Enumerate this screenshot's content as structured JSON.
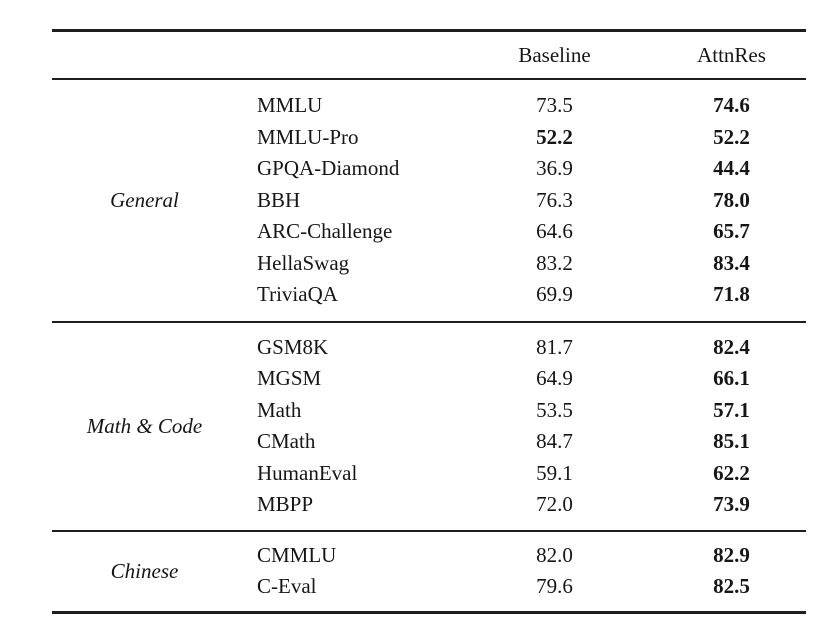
{
  "table": {
    "header": {
      "baseline": "Baseline",
      "attnres": "AttnRes"
    },
    "style": {
      "rule_color": "#1e1e1e",
      "text_color": "#161616",
      "background": "#ffffff"
    },
    "sections": [
      {
        "group": "General",
        "rows": [
          {
            "name": "MMLU",
            "baseline": "73.5",
            "attnres": "74.6",
            "baseline_bold": false,
            "attnres_bold": true
          },
          {
            "name": "MMLU-Pro",
            "baseline": "52.2",
            "attnres": "52.2",
            "baseline_bold": true,
            "attnres_bold": true
          },
          {
            "name": "GPQA-Diamond",
            "baseline": "36.9",
            "attnres": "44.4",
            "baseline_bold": false,
            "attnres_bold": true
          },
          {
            "name": "BBH",
            "baseline": "76.3",
            "attnres": "78.0",
            "baseline_bold": false,
            "attnres_bold": true
          },
          {
            "name": "ARC-Challenge",
            "baseline": "64.6",
            "attnres": "65.7",
            "baseline_bold": false,
            "attnres_bold": true
          },
          {
            "name": "HellaSwag",
            "baseline": "83.2",
            "attnres": "83.4",
            "baseline_bold": false,
            "attnres_bold": true
          },
          {
            "name": "TriviaQA",
            "baseline": "69.9",
            "attnres": "71.8",
            "baseline_bold": false,
            "attnres_bold": true
          }
        ]
      },
      {
        "group": "Math & Code",
        "rows": [
          {
            "name": "GSM8K",
            "baseline": "81.7",
            "attnres": "82.4",
            "baseline_bold": false,
            "attnres_bold": true
          },
          {
            "name": "MGSM",
            "baseline": "64.9",
            "attnres": "66.1",
            "baseline_bold": false,
            "attnres_bold": true
          },
          {
            "name": "Math",
            "baseline": "53.5",
            "attnres": "57.1",
            "baseline_bold": false,
            "attnres_bold": true
          },
          {
            "name": "CMath",
            "baseline": "84.7",
            "attnres": "85.1",
            "baseline_bold": false,
            "attnres_bold": true
          },
          {
            "name": "HumanEval",
            "baseline": "59.1",
            "attnres": "62.2",
            "baseline_bold": false,
            "attnres_bold": true
          },
          {
            "name": "MBPP",
            "baseline": "72.0",
            "attnres": "73.9",
            "baseline_bold": false,
            "attnres_bold": true
          }
        ]
      },
      {
        "group": "Chinese",
        "rows": [
          {
            "name": "CMMLU",
            "baseline": "82.0",
            "attnres": "82.9",
            "baseline_bold": false,
            "attnres_bold": true
          },
          {
            "name": "C-Eval",
            "baseline": "79.6",
            "attnres": "82.5",
            "baseline_bold": false,
            "attnres_bold": true
          }
        ]
      }
    ]
  }
}
